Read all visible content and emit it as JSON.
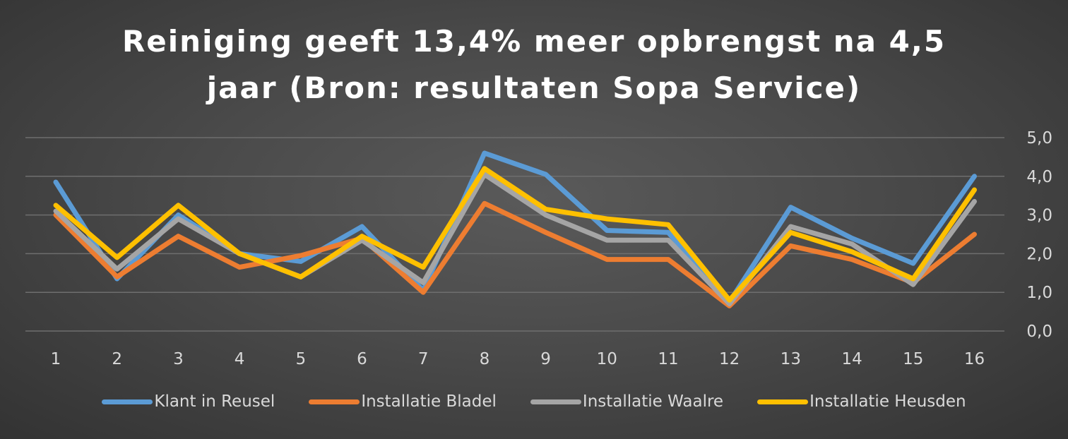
{
  "chart_data": {
    "type": "line",
    "title_lines": [
      "Reiniging geeft 13,4% meer opbrengst na 4,5",
      "jaar (Bron: resultaten Sopa Service)"
    ],
    "categories": [
      "1",
      "2",
      "3",
      "4",
      "5",
      "6",
      "7",
      "8",
      "9",
      "10",
      "11",
      "12",
      "13",
      "14",
      "15",
      "16"
    ],
    "ylim": [
      0,
      5
    ],
    "y_ticks": [
      "0,0",
      "1,0",
      "2,0",
      "3,0",
      "4,0",
      "5,0"
    ],
    "y_axis_side": "right",
    "grid": true,
    "legend_position": "bottom",
    "series": [
      {
        "name": "Klant in Reusel",
        "color": "#5b9bd5",
        "values": [
          3.85,
          1.35,
          3.0,
          2.0,
          1.8,
          2.7,
          1.05,
          4.6,
          4.05,
          2.6,
          2.55,
          0.75,
          3.2,
          2.4,
          1.75,
          4.0
        ]
      },
      {
        "name": "Installatie Bladel",
        "color": "#ed7d31",
        "values": [
          3.0,
          1.4,
          2.45,
          1.65,
          1.95,
          2.4,
          1.0,
          3.3,
          2.55,
          1.85,
          1.85,
          0.65,
          2.2,
          1.85,
          1.25,
          2.5
        ]
      },
      {
        "name": "Installatie Waalre",
        "color": "#a5a5a5",
        "values": [
          3.1,
          1.6,
          2.9,
          2.0,
          1.4,
          2.35,
          1.25,
          4.05,
          3.0,
          2.35,
          2.35,
          0.7,
          2.7,
          2.25,
          1.2,
          3.35
        ]
      },
      {
        "name": "Installatie Heusden",
        "color": "#ffc000",
        "values": [
          3.25,
          1.9,
          3.25,
          2.0,
          1.4,
          2.45,
          1.65,
          4.2,
          3.15,
          2.9,
          2.75,
          0.8,
          2.55,
          2.05,
          1.35,
          3.65
        ]
      }
    ]
  }
}
